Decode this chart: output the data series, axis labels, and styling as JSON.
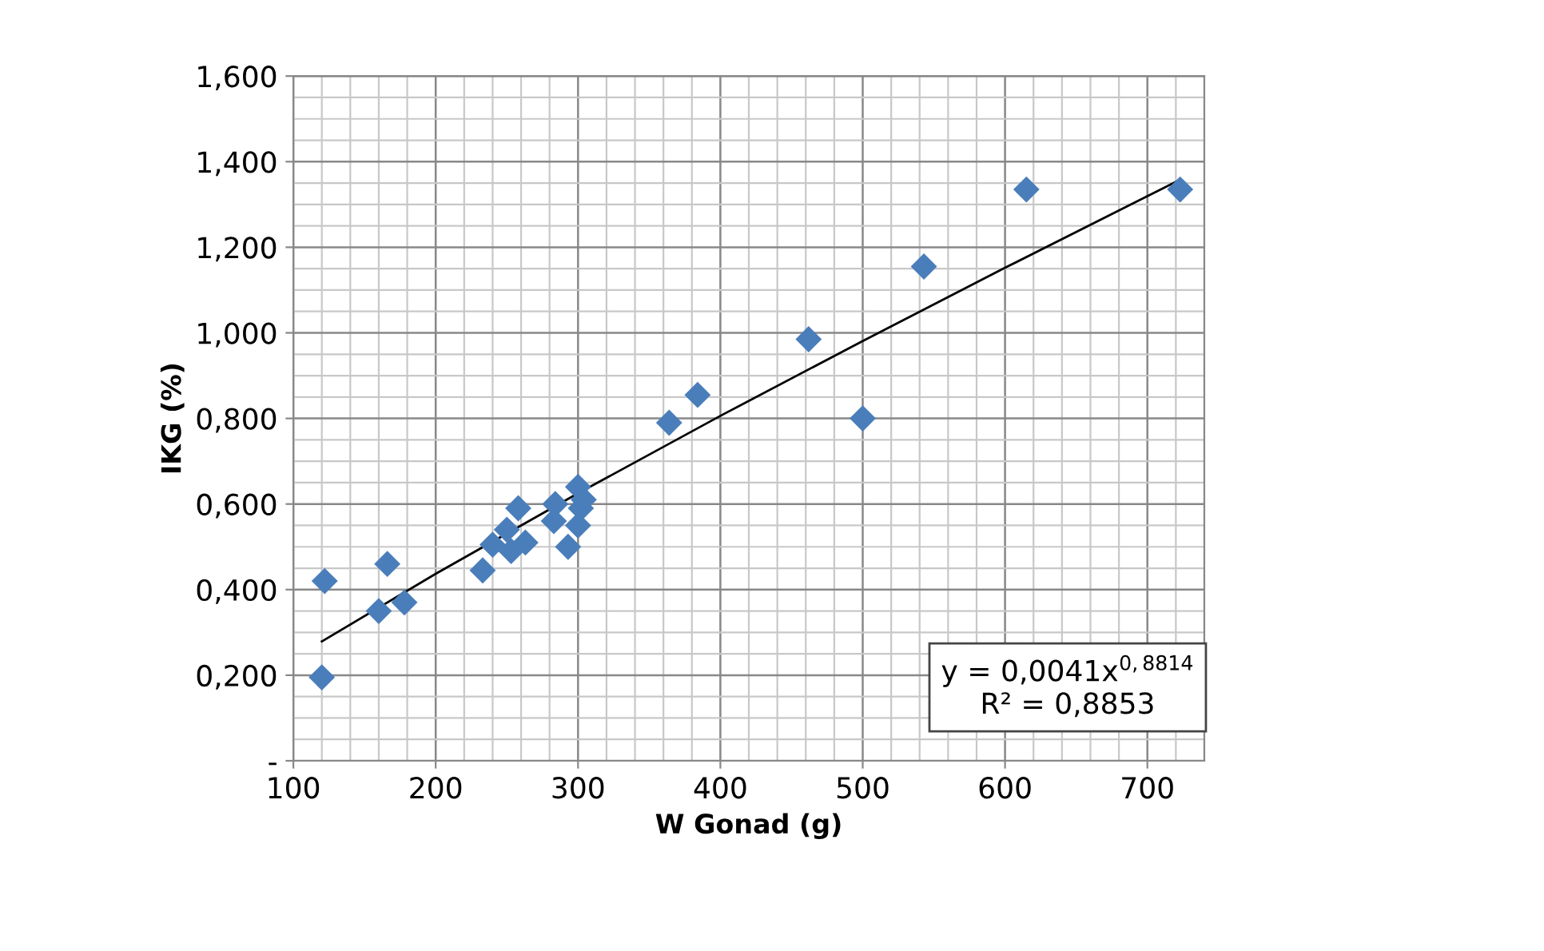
{
  "chart_data": {
    "type": "scatter",
    "xlabel": "W Gonad (g)",
    "ylabel": "IKG (%)",
    "xlim": [
      100,
      740
    ],
    "xticks": [
      100,
      200,
      300,
      400,
      500,
      600,
      700
    ],
    "ylim": [
      0,
      1.6
    ],
    "yticks": [
      {
        "value": 0,
        "label": "-"
      },
      {
        "value": 0.2,
        "label": "0,200"
      },
      {
        "value": 0.4,
        "label": "0,400"
      },
      {
        "value": 0.6,
        "label": "0,600"
      },
      {
        "value": 0.8,
        "label": "0,800"
      },
      {
        "value": 1.0,
        "label": "1,000"
      },
      {
        "value": 1.2,
        "label": "1,200"
      },
      {
        "value": 1.4,
        "label": "1,400"
      },
      {
        "value": 1.6,
        "label": "1,600"
      }
    ],
    "grid": true,
    "series": [
      {
        "marker": "diamond",
        "color": "#4a7ebb",
        "x": [
          120,
          122,
          160,
          166,
          178,
          233,
          240,
          250,
          253,
          258,
          260,
          263,
          283,
          284,
          293,
          300,
          300,
          302,
          304,
          364,
          384,
          462,
          500,
          543,
          615,
          723
        ],
        "values": [
          0.195,
          0.42,
          0.35,
          0.46,
          0.37,
          0.445,
          0.505,
          0.54,
          0.49,
          0.59,
          null,
          0.51,
          0.56,
          0.6,
          0.5,
          0.55,
          0.64,
          0.59,
          0.61,
          0.79,
          0.855,
          0.985,
          0.8,
          1.155,
          1.335,
          1.335
        ]
      },
      {
        "type": "line",
        "color": "#000000",
        "x": [
          120,
          200,
          300,
          400,
          500,
          600,
          723
        ],
        "values": [
          0.279,
          0.437,
          0.625,
          0.806,
          0.981,
          1.152,
          1.358
        ]
      }
    ],
    "annotations": [
      "y = 0,0041x$^{0,8814}$",
      "R² = 0,8853"
    ]
  }
}
